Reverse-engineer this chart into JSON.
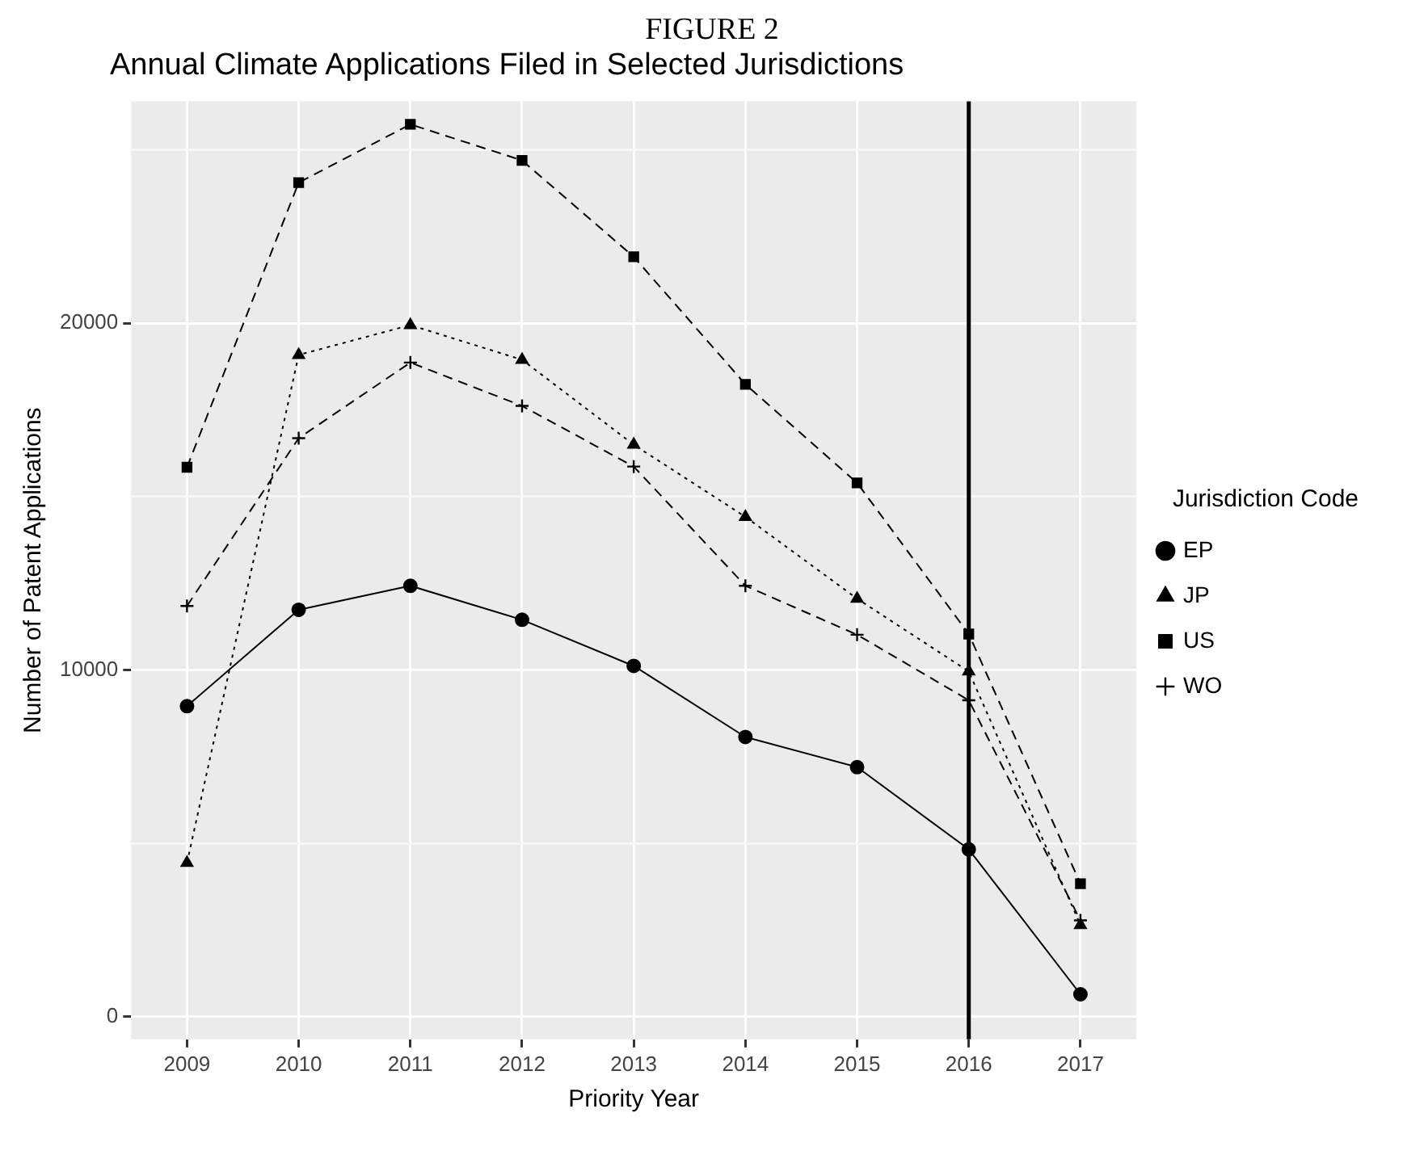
{
  "chart_data": {
    "type": "line",
    "title": "FIGURE 2",
    "subtitle": "Annual Climate Applications Filed in Selected Jurisdictions",
    "xlabel": "Priority Year",
    "ylabel": "Number of Patent Applications",
    "legend_title": "Jurisdiction Code",
    "legend": "right",
    "grid": true,
    "categories": [
      "2009",
      "2010",
      "2011",
      "2012",
      "2013",
      "2014",
      "2015",
      "2016",
      "2017"
    ],
    "ylim": [
      -650,
      26400
    ],
    "yticks": [
      0,
      {
        "value": 5000,
        "label": null
      },
      10000,
      {
        "value": 15000,
        "label": null
      },
      20000,
      {
        "value": 25000,
        "label": null
      }
    ],
    "series": [
      {
        "name": "EP",
        "color": "#000000",
        "marker": "circle",
        "line_style": "solid",
        "values": [
          8960,
          11740,
          12430,
          11450,
          10120,
          8070,
          7200,
          4830,
          650
        ]
      },
      {
        "name": "JP",
        "color": "#000000",
        "marker": "triangle",
        "line_style": "dotted",
        "values": [
          4440,
          19090,
          19950,
          18950,
          16500,
          14420,
          12060,
          9960,
          2650
        ]
      },
      {
        "name": "US",
        "color": "#000000",
        "marker": "square",
        "line_style": "dashed",
        "values": [
          15850,
          24060,
          25740,
          24700,
          21920,
          18240,
          15400,
          11040,
          3840
        ]
      },
      {
        "name": "WO",
        "color": "#000000",
        "marker": "cross",
        "line_style": "dashed",
        "values": [
          11850,
          16690,
          18870,
          17620,
          15870,
          12430,
          11020,
          9130,
          2780
        ]
      }
    ],
    "ref_lines": [
      {
        "axis": "x",
        "value": "2016",
        "color": "#000000"
      }
    ]
  }
}
